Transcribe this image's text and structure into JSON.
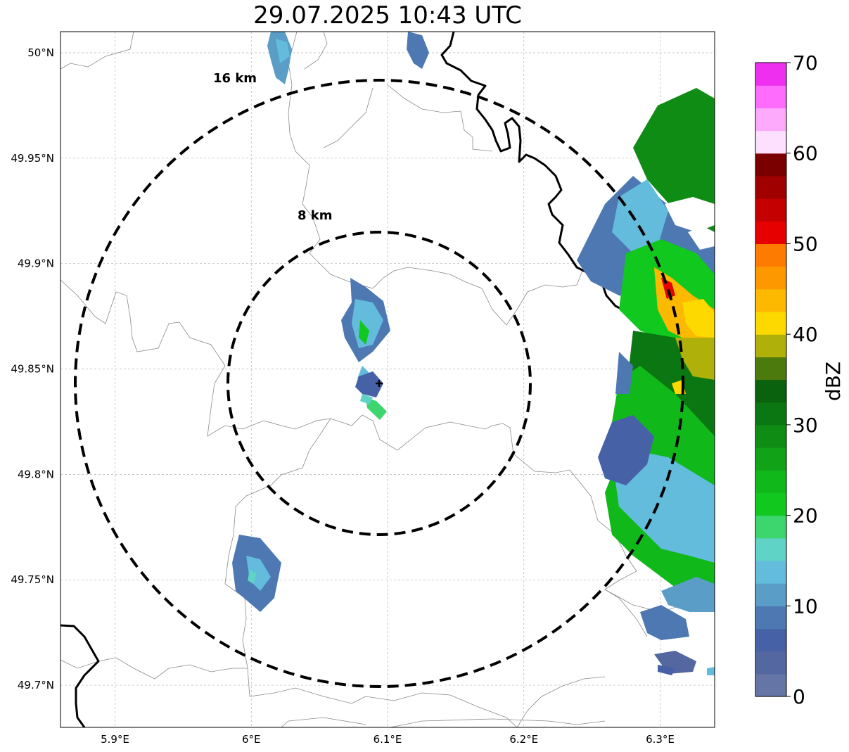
{
  "title": "29.07.2025 10:43 UTC",
  "map": {
    "lon_range": [
      5.86,
      6.34
    ],
    "lat_range": [
      49.68,
      50.01
    ],
    "grid": true,
    "lon_ticks": [
      {
        "value": 5.9,
        "label": "5.9°E"
      },
      {
        "value": 6.0,
        "label": "6°E"
      },
      {
        "value": 6.1,
        "label": "6.1°E"
      },
      {
        "value": 6.2,
        "label": "6.2°E"
      },
      {
        "value": 6.3,
        "label": "6.3°E"
      }
    ],
    "lat_ticks": [
      {
        "value": 50.0,
        "label": "50°N"
      },
      {
        "value": 49.95,
        "label": "49.95°N"
      },
      {
        "value": 49.9,
        "label": "49.9°N"
      },
      {
        "value": 49.85,
        "label": "49.85°N"
      },
      {
        "value": 49.8,
        "label": "49.8°N"
      },
      {
        "value": 49.75,
        "label": "49.75°N"
      },
      {
        "value": 49.7,
        "label": "49.7°N"
      }
    ],
    "center": {
      "lon": 6.0955,
      "lat": 49.844
    },
    "range_rings": [
      {
        "radius_km": 8,
        "label": "8 km"
      },
      {
        "radius_km": 16,
        "label": "16 km"
      }
    ]
  },
  "colorbar": {
    "label": "dBZ",
    "min": 0,
    "max": 70,
    "ticks": [
      {
        "value": 0,
        "label": "0"
      },
      {
        "value": 10,
        "label": "10"
      },
      {
        "value": 20,
        "label": "20"
      },
      {
        "value": 30,
        "label": "30"
      },
      {
        "value": 40,
        "label": "40"
      },
      {
        "value": 50,
        "label": "50"
      },
      {
        "value": 60,
        "label": "60"
      },
      {
        "value": 70,
        "label": "70"
      }
    ],
    "colors": [
      "#6475a6",
      "#5467a1",
      "#4661a6",
      "#4d78b2",
      "#5a9ec8",
      "#63bcdc",
      "#5ed3c6",
      "#3dd56e",
      "#10c81e",
      "#10b81a",
      "#11a218",
      "#0e8c14",
      "#0b7712",
      "#0a620e",
      "#4c7a0c",
      "#b0b00a",
      "#fdd900",
      "#fdb900",
      "#fd9800",
      "#fd7b00",
      "#e60000",
      "#c40000",
      "#a00000",
      "#7a0000",
      "#fde0fd",
      "#fdaafd",
      "#fd6cfd",
      "#ef2fef"
    ]
  }
}
